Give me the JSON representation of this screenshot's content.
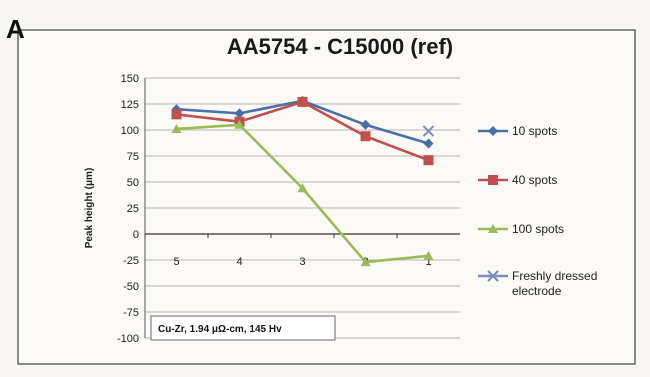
{
  "panel_label": "A",
  "chart_data": {
    "type": "line",
    "title": "AA5754 - C15000 (ref)",
    "xlabel": "",
    "ylabel": "Peak height (μm)",
    "categories": [
      "5",
      "4",
      "3",
      "2",
      "1"
    ],
    "ylim": [
      -100,
      150
    ],
    "yticks": [
      150,
      125,
      100,
      75,
      50,
      25,
      0,
      -25,
      -50,
      -75,
      -100
    ],
    "grid": true,
    "legend_position": "right",
    "annotation": "Cu-Zr, 1.94 μΩ-cm, 145 Hv",
    "series": [
      {
        "name": "10 spots",
        "values": [
          120,
          116,
          128,
          105,
          87
        ],
        "color": "#4a6fa5",
        "marker": "diamond"
      },
      {
        "name": "40 spots",
        "values": [
          115,
          108,
          127,
          94,
          71
        ],
        "color": "#c0504d",
        "marker": "square"
      },
      {
        "name": "100 spots",
        "values": [
          101,
          105,
          44,
          -27,
          -21
        ],
        "color": "#9bbb59",
        "marker": "triangle"
      },
      {
        "name": "Freshly dressed electrode",
        "values": [
          null,
          null,
          null,
          null,
          99
        ],
        "color": "#7b8db8",
        "marker": "cross"
      }
    ]
  }
}
